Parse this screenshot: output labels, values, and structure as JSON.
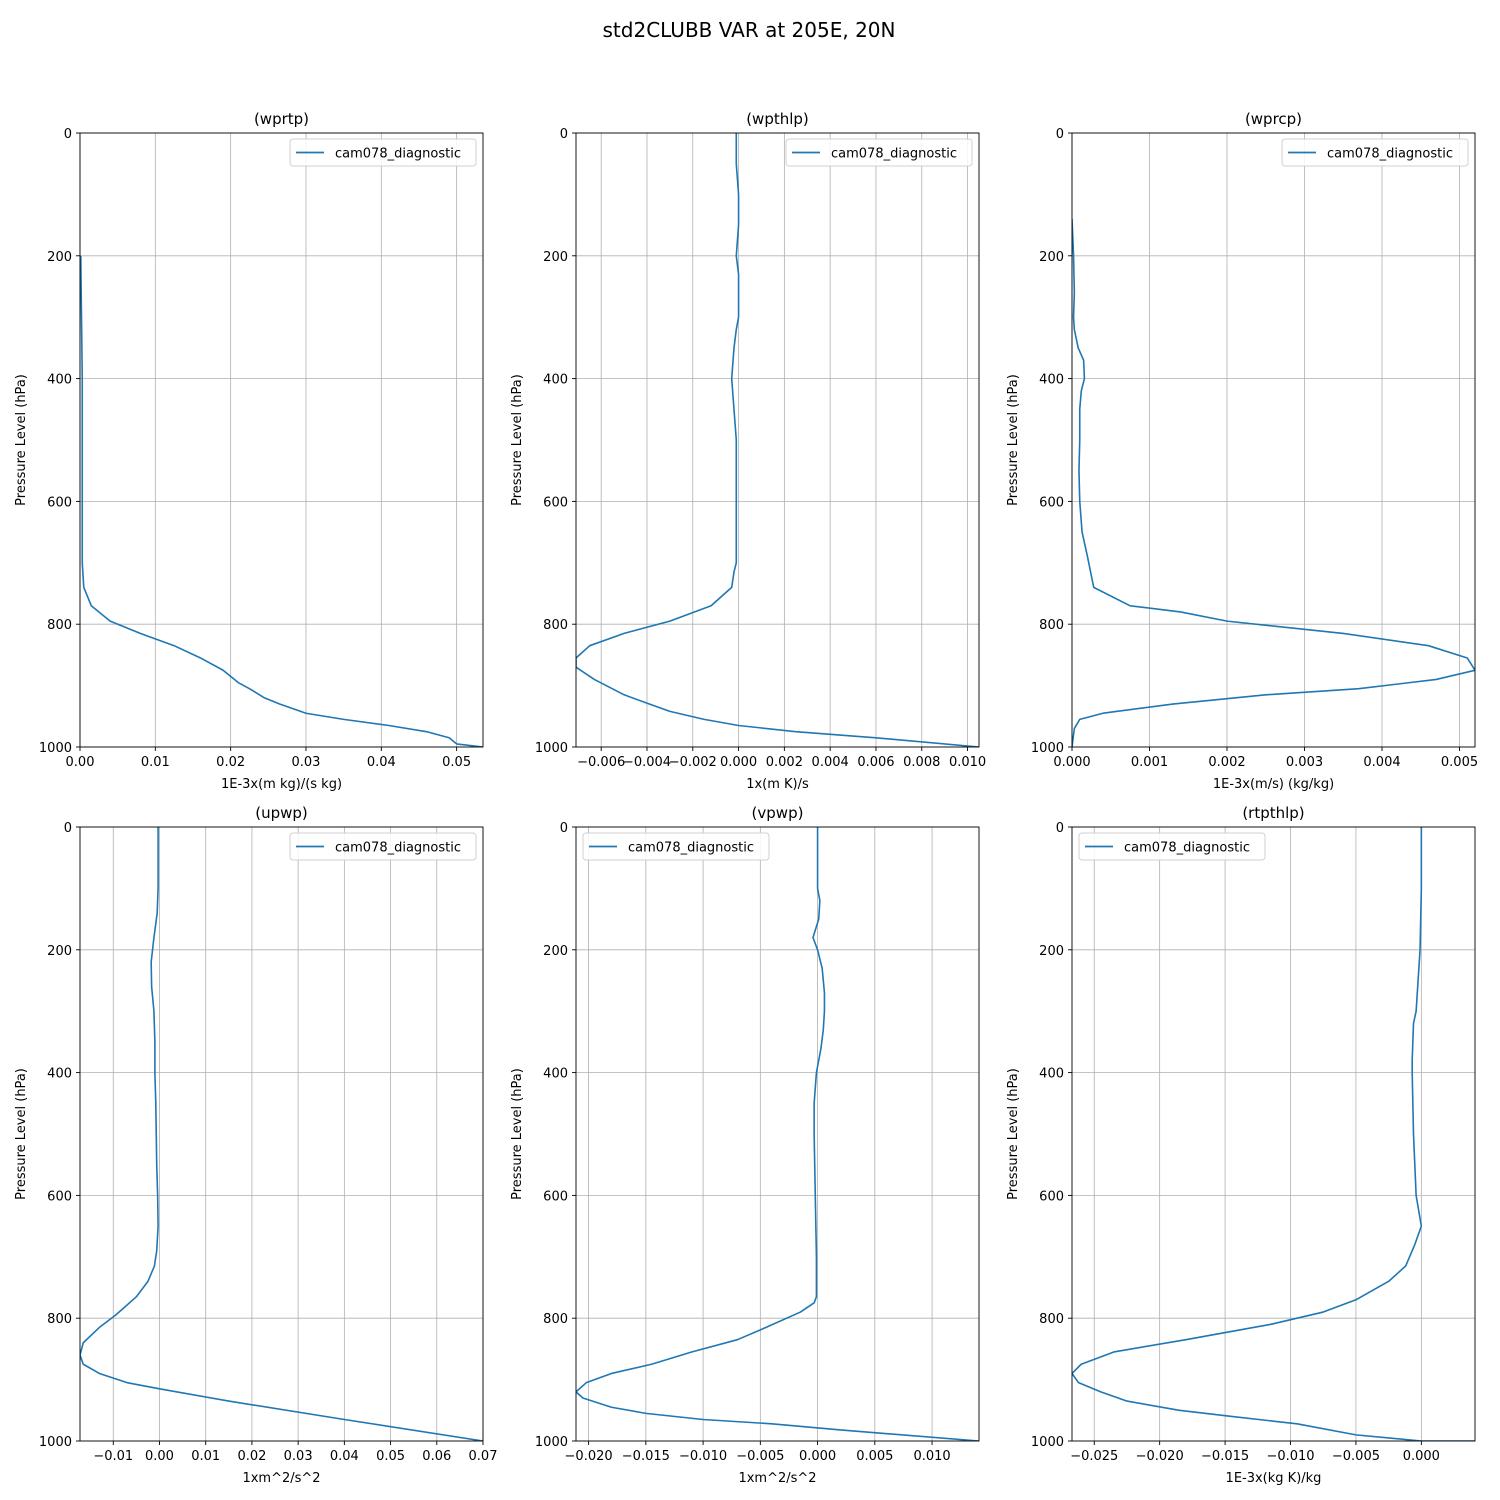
{
  "figure": {
    "title": "std2CLUBB VAR at 205E, 20N"
  },
  "chart_data": [
    {
      "type": "line",
      "title": "(wprtp)",
      "xlabel": "1E-3x(m kg)/(s kg)",
      "ylabel": "Pressure Level (hPa)",
      "xlim": [
        0,
        0.0535
      ],
      "ylim": [
        1000,
        0
      ],
      "grid": true,
      "legend_loc": "upper right",
      "xticks": [
        0,
        0.01,
        0.02,
        0.03,
        0.04,
        0.05
      ],
      "xtick_labels": [
        "0.00",
        "0.01",
        "0.02",
        "0.03",
        "0.04",
        "0.05"
      ],
      "yticks": [
        0,
        200,
        400,
        600,
        800,
        1000
      ],
      "ytick_labels": [
        "0",
        "200",
        "400",
        "600",
        "800",
        "1000"
      ],
      "series": [
        {
          "name": "cam078_diagnostic",
          "color": "#1f77b4",
          "x": [
            0.0001,
            0.0002,
            0.0003,
            0.0003,
            0.0003,
            0.0003,
            0.0004,
            0.0005,
            0.0015,
            0.004,
            0.008,
            0.0125,
            0.016,
            0.019,
            0.021,
            0.0225,
            0.0245,
            0.0265,
            0.03,
            0.035,
            0.041,
            0.046,
            0.049,
            0.05,
            0.0535
          ],
          "y": [
            200,
            300,
            400,
            500,
            600,
            700,
            720,
            740,
            770,
            795,
            815,
            835,
            855,
            875,
            895,
            905,
            920,
            930,
            945,
            955,
            965,
            975,
            985,
            995,
            1000
          ]
        }
      ]
    },
    {
      "type": "line",
      "title": "(wpthlp)",
      "xlabel": "1x(m K)/s",
      "ylabel": "Pressure Level (hPa)",
      "xlim": [
        -0.0071,
        0.0105
      ],
      "ylim": [
        1000,
        0
      ],
      "grid": true,
      "legend_loc": "upper right",
      "xticks": [
        -0.006,
        -0.004,
        -0.002,
        0,
        0.002,
        0.004,
        0.006,
        0.008,
        0.01
      ],
      "xtick_labels": [
        "−0.006",
        "−0.004",
        "−0.002",
        "0.000",
        "0.002",
        "0.004",
        "0.006",
        "0.008",
        "0.010"
      ],
      "yticks": [
        0,
        200,
        400,
        600,
        800,
        1000
      ],
      "ytick_labels": [
        "0",
        "200",
        "400",
        "600",
        "800",
        "1000"
      ],
      "series": [
        {
          "name": "cam078_diagnostic",
          "color": "#1f77b4",
          "x": [
            -0.0001,
            -0.0001,
            0,
            0,
            -0.0001,
            0,
            0,
            -0.0001,
            -0.0002,
            -0.0003,
            -0.0002,
            -0.0001,
            -0.0001,
            -0.0001,
            -0.0002,
            -0.0003,
            -0.0012,
            -0.003,
            -0.005,
            -0.0065,
            -0.0071,
            -0.0071,
            -0.0063,
            -0.005,
            -0.0039,
            -0.003,
            -0.0015,
            0,
            0.0025,
            0.006,
            0.0105
          ],
          "y": [
            0,
            50,
            100,
            150,
            200,
            230,
            300,
            320,
            350,
            400,
            450,
            500,
            600,
            700,
            715,
            740,
            770,
            795,
            815,
            835,
            855,
            870,
            890,
            915,
            930,
            942,
            955,
            965,
            975,
            985,
            1000
          ]
        }
      ]
    },
    {
      "type": "line",
      "title": "(wprcp)",
      "xlabel": "1E-3x(m/s) (kg/kg)",
      "ylabel": "Pressure Level (hPa)",
      "xlim": [
        0,
        0.0052
      ],
      "ylim": [
        1000,
        0
      ],
      "grid": true,
      "legend_loc": "upper right",
      "xticks": [
        0,
        0.001,
        0.002,
        0.003,
        0.004,
        0.005
      ],
      "xtick_labels": [
        "0.000",
        "0.001",
        "0.002",
        "0.003",
        "0.004",
        "0.005"
      ],
      "yticks": [
        0,
        200,
        400,
        600,
        800,
        1000
      ],
      "ytick_labels": [
        "0",
        "200",
        "400",
        "600",
        "800",
        "1000"
      ],
      "series": [
        {
          "name": "cam078_diagnostic",
          "color": "#1f77b4",
          "x": [
            0,
            2e-05,
            3e-05,
            2e-05,
            3e-05,
            8e-05,
            0.00015,
            0.00016,
            0.00012,
            0.0001,
            0.0001,
            9e-05,
            0.0001,
            0.00013,
            0.0002,
            0.00028,
            0.00075,
            0.0014,
            0.002,
            0.0035,
            0.0046,
            0.0051,
            0.0052,
            0.0047,
            0.0037,
            0.0025,
            0.0013,
            0.0004,
            0.0001,
            3e-05,
            0
          ],
          "y": [
            140,
            200,
            260,
            300,
            320,
            350,
            370,
            400,
            420,
            450,
            500,
            550,
            600,
            650,
            690,
            740,
            770,
            780,
            795,
            815,
            835,
            855,
            875,
            890,
            905,
            915,
            930,
            945,
            955,
            970,
            1000
          ]
        }
      ]
    },
    {
      "type": "line",
      "title": "(upwp)",
      "xlabel": "1xm^2/s^2",
      "ylabel": "Pressure Level (hPa)",
      "xlim": [
        -0.0172,
        0.07
      ],
      "ylim": [
        1000,
        0
      ],
      "grid": true,
      "legend_loc": "upper right",
      "xticks": [
        -0.01,
        0,
        0.01,
        0.02,
        0.03,
        0.04,
        0.05,
        0.06,
        0.07
      ],
      "xtick_labels": [
        "−0.01",
        "0.00",
        "0.01",
        "0.02",
        "0.03",
        "0.04",
        "0.05",
        "0.06",
        "0.07"
      ],
      "yticks": [
        0,
        200,
        400,
        600,
        800,
        1000
      ],
      "ytick_labels": [
        "0",
        "200",
        "400",
        "600",
        "800",
        "1000"
      ],
      "series": [
        {
          "name": "cam078_diagnostic",
          "color": "#1f77b4",
          "x": [
            -0.0003,
            -0.0003,
            -0.0003,
            -0.0005,
            -0.0012,
            -0.0018,
            -0.0017,
            -0.0012,
            -0.001,
            -0.001,
            -0.0008,
            -0.0007,
            -0.0006,
            -0.0004,
            -0.0003,
            -0.0006,
            -0.0011,
            -0.0025,
            -0.005,
            -0.0095,
            -0.013,
            -0.0165,
            -0.0172,
            -0.0165,
            -0.013,
            -0.007,
            0,
            0.015,
            0.04,
            0.07
          ],
          "y": [
            0,
            50,
            100,
            140,
            180,
            220,
            260,
            300,
            350,
            400,
            450,
            500,
            550,
            600,
            650,
            690,
            715,
            740,
            765,
            795,
            815,
            840,
            860,
            875,
            890,
            905,
            915,
            935,
            965,
            1000
          ]
        }
      ]
    },
    {
      "type": "line",
      "title": "(vpwp)",
      "xlabel": "1xm^2/s^2",
      "ylabel": "Pressure Level (hPa)",
      "xlim": [
        -0.0211,
        0.0141
      ],
      "ylim": [
        1000,
        0
      ],
      "grid": true,
      "legend_loc": "upper left",
      "xticks": [
        -0.02,
        -0.015,
        -0.01,
        -0.005,
        0,
        0.005,
        0.01
      ],
      "xtick_labels": [
        "−0.020",
        "−0.015",
        "−0.010",
        "−0.005",
        "0.000",
        "0.005",
        "0.010"
      ],
      "yticks": [
        0,
        200,
        400,
        600,
        800,
        1000
      ],
      "ytick_labels": [
        "0",
        "200",
        "400",
        "600",
        "800",
        "1000"
      ],
      "series": [
        {
          "name": "cam078_diagnostic",
          "color": "#1f77b4",
          "x": [
            0,
            0,
            0,
            0.0002,
            0.0001,
            -0.0004,
            0,
            0.0004,
            0.0006,
            0.0006,
            0.0005,
            0.0003,
            -0.0001,
            -0.0003,
            -0.0003,
            -0.0002,
            -0.0001,
            -0.0001,
            -0.0001,
            -0.0003,
            -0.0015,
            -0.0045,
            -0.007,
            -0.011,
            -0.0145,
            -0.018,
            -0.0202,
            -0.0211,
            -0.0205,
            -0.018,
            -0.015,
            -0.01,
            -0.004,
            0.002,
            0.0141
          ],
          "y": [
            0,
            50,
            100,
            120,
            150,
            180,
            200,
            230,
            270,
            300,
            330,
            360,
            400,
            450,
            500,
            600,
            700,
            745,
            765,
            775,
            790,
            815,
            835,
            855,
            875,
            890,
            905,
            920,
            930,
            945,
            955,
            965,
            972,
            982,
            1000
          ]
        }
      ]
    },
    {
      "type": "line",
      "title": "(rtpthlp)",
      "xlabel": "1E-3x(kg K)/kg",
      "ylabel": "Pressure Level (hPa)",
      "xlim": [
        -0.0267,
        0.0041
      ],
      "ylim": [
        1000,
        0
      ],
      "grid": true,
      "legend_loc": "upper left",
      "xticks": [
        -0.025,
        -0.02,
        -0.015,
        -0.01,
        -0.005,
        0
      ],
      "xtick_labels": [
        "−0.025",
        "−0.020",
        "−0.015",
        "−0.010",
        "−0.005",
        "0.000"
      ],
      "yticks": [
        0,
        200,
        400,
        600,
        800,
        1000
      ],
      "ytick_labels": [
        "0",
        "200",
        "400",
        "600",
        "800",
        "1000"
      ],
      "series": [
        {
          "name": "cam078_diagnostic",
          "color": "#1f77b4",
          "x": [
            0,
            0,
            0,
            -0.0001,
            -0.0004,
            -0.0006,
            -0.0007,
            -0.0007,
            -0.0006,
            -0.0004,
            0,
            -0.0005,
            -0.0012,
            -0.0025,
            -0.005,
            -0.0075,
            -0.0115,
            -0.018,
            -0.0235,
            -0.026,
            -0.0267,
            -0.0262,
            -0.0245,
            -0.0225,
            -0.0185,
            -0.0145,
            -0.0095,
            -0.005,
            0,
            0.0025,
            0.0041
          ],
          "y": [
            0,
            50,
            100,
            200,
            300,
            320,
            380,
            400,
            500,
            600,
            650,
            680,
            715,
            740,
            770,
            790,
            810,
            835,
            855,
            875,
            890,
            905,
            920,
            935,
            950,
            960,
            972,
            990,
            1000,
            1000,
            1000
          ]
        }
      ]
    }
  ]
}
